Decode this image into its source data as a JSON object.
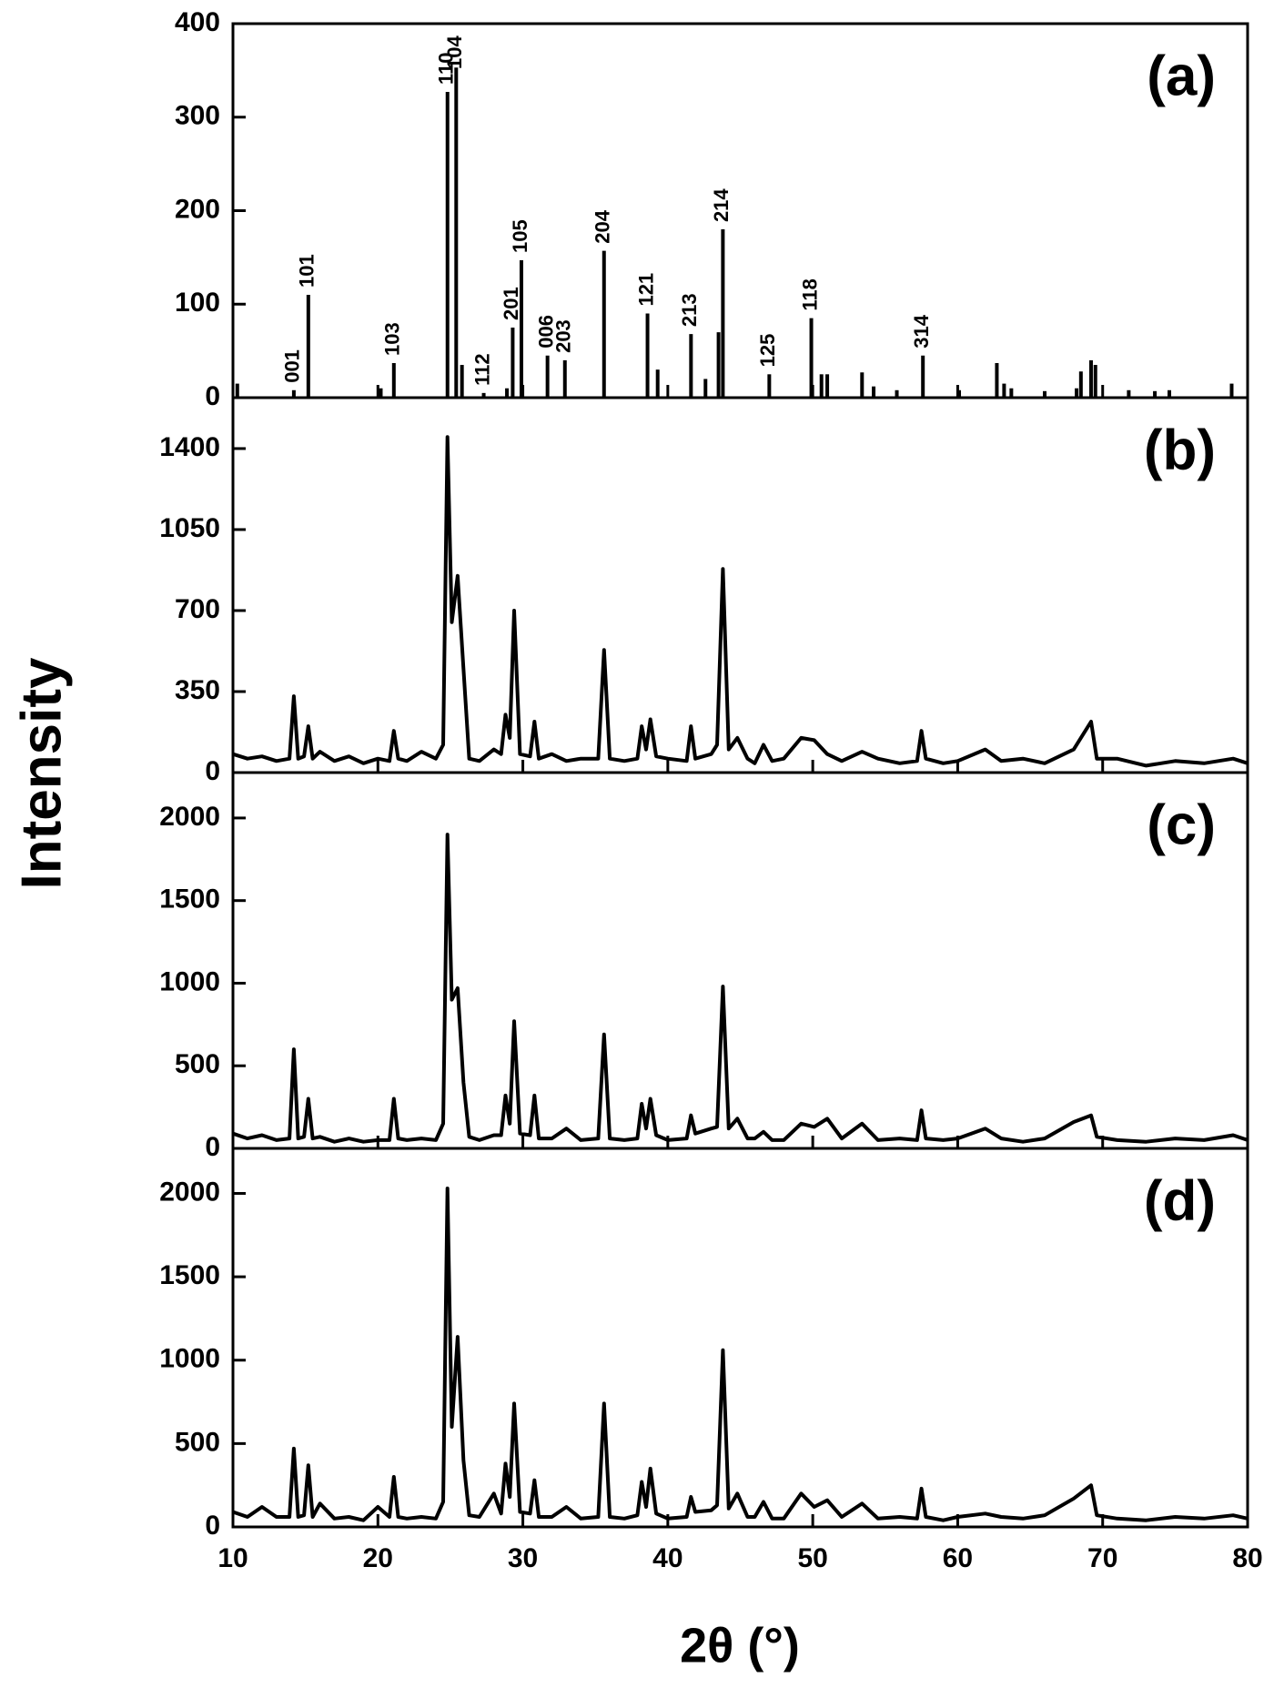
{
  "x_label": "2θ (°)",
  "y_label": "Intensity",
  "chart_data": [
    {
      "type": "stem",
      "label": "(a)",
      "color": "#000000",
      "xlim": [
        10,
        80
      ],
      "xticks": [
        10,
        20,
        30,
        40,
        50,
        60,
        70,
        80
      ],
      "ylim": [
        0,
        400
      ],
      "yticks": [
        0,
        100,
        200,
        300,
        400
      ],
      "x": [
        10.3,
        14.2,
        15.2,
        20.2,
        21.1,
        24.8,
        25.4,
        25.8,
        27.3,
        28.9,
        29.3,
        29.9,
        31.7,
        32.9,
        35.6,
        38.6,
        39.3,
        41.6,
        42.6,
        43.5,
        43.8,
        47.0,
        49.9,
        50.6,
        51.0,
        53.4,
        54.2,
        55.8,
        57.6,
        60.1,
        62.7,
        63.2,
        63.7,
        66.0,
        68.2,
        68.5,
        69.2,
        69.5,
        71.8,
        73.6,
        74.6,
        78.9
      ],
      "values": [
        15,
        8,
        110,
        10,
        37,
        327,
        353,
        35,
        5,
        10,
        75,
        147,
        45,
        40,
        157,
        90,
        30,
        68,
        20,
        70,
        180,
        25,
        85,
        25,
        25,
        27,
        12,
        8,
        45,
        8,
        37,
        15,
        10,
        7,
        10,
        28,
        40,
        35,
        8,
        7,
        8,
        15
      ],
      "annotations": [
        {
          "text": "001",
          "x": 14.2
        },
        {
          "text": "101",
          "x": 15.2
        },
        {
          "text": "103",
          "x": 21.1
        },
        {
          "text": "110",
          "x": 24.8
        },
        {
          "text": "104",
          "x": 25.4
        },
        {
          "text": "112",
          "x": 27.3
        },
        {
          "text": "201",
          "x": 29.3
        },
        {
          "text": "105",
          "x": 29.9
        },
        {
          "text": "006",
          "x": 31.7
        },
        {
          "text": "203",
          "x": 32.9
        },
        {
          "text": "204",
          "x": 35.6
        },
        {
          "text": "121",
          "x": 38.6
        },
        {
          "text": "213",
          "x": 41.6
        },
        {
          "text": "214",
          "x": 43.8
        },
        {
          "text": "125",
          "x": 47.0
        },
        {
          "text": "118",
          "x": 49.9
        },
        {
          "text": "314",
          "x": 57.6
        }
      ]
    },
    {
      "type": "line",
      "label": "(b)",
      "color": "#000000",
      "xlim": [
        10,
        80
      ],
      "xticks": [
        10,
        20,
        30,
        40,
        50,
        60,
        70,
        80
      ],
      "ylim": [
        0,
        1620
      ],
      "yticks": [
        0,
        350,
        700,
        1050,
        1400
      ],
      "x": [
        10,
        11,
        12,
        13,
        13.9,
        14.2,
        14.5,
        14.9,
        15.2,
        15.5,
        16,
        17,
        18,
        19,
        20,
        20.8,
        21.1,
        21.4,
        22,
        23,
        24,
        24.5,
        24.8,
        25.1,
        25.5,
        25.9,
        26.3,
        27,
        28,
        28.5,
        28.8,
        29.1,
        29.4,
        29.8,
        30.5,
        30.8,
        31.1,
        32,
        33,
        34,
        35.2,
        35.6,
        36,
        37,
        37.9,
        38.2,
        38.5,
        38.8,
        39.2,
        40,
        41.3,
        41.6,
        41.9,
        43,
        43.4,
        43.8,
        44.2,
        44.8,
        45.5,
        46,
        46.6,
        47.2,
        48,
        49.2,
        50.1,
        51,
        52,
        53.4,
        54.5,
        56,
        57.2,
        57.5,
        57.8,
        59,
        60,
        61.9,
        63,
        64.5,
        66,
        68,
        69.2,
        69.6,
        71,
        73,
        75,
        77,
        79,
        80
      ],
      "values": [
        80,
        60,
        70,
        50,
        60,
        330,
        60,
        70,
        200,
        60,
        90,
        50,
        70,
        40,
        60,
        50,
        180,
        60,
        50,
        90,
        60,
        120,
        1450,
        650,
        850,
        450,
        60,
        50,
        100,
        80,
        250,
        150,
        700,
        80,
        70,
        220,
        60,
        80,
        50,
        60,
        60,
        530,
        60,
        50,
        60,
        200,
        100,
        230,
        70,
        60,
        50,
        200,
        60,
        80,
        120,
        880,
        100,
        150,
        60,
        40,
        120,
        50,
        60,
        150,
        140,
        80,
        50,
        90,
        60,
        40,
        50,
        180,
        60,
        40,
        50,
        100,
        50,
        60,
        40,
        100,
        220,
        60,
        60,
        30,
        50,
        40,
        60,
        40
      ]
    },
    {
      "type": "line",
      "label": "(c)",
      "color": "#000000",
      "xlim": [
        10,
        80
      ],
      "xticks": [
        10,
        20,
        30,
        40,
        50,
        60,
        70,
        80
      ],
      "ylim": [
        0,
        2275
      ],
      "yticks": [
        0,
        500,
        1000,
        1500,
        2000
      ],
      "x": [
        10,
        11,
        12,
        13,
        13.9,
        14.2,
        14.5,
        14.9,
        15.2,
        15.5,
        16,
        17,
        18,
        19,
        20,
        20.8,
        21.1,
        21.4,
        22,
        23,
        24,
        24.5,
        24.8,
        25.1,
        25.5,
        25.9,
        26.3,
        27,
        28,
        28.5,
        28.8,
        29.1,
        29.4,
        29.8,
        30.5,
        30.8,
        31.1,
        32,
        33,
        34,
        35.2,
        35.6,
        36,
        37,
        37.9,
        38.2,
        38.5,
        38.8,
        39.2,
        40,
        41.3,
        41.6,
        41.9,
        43,
        43.4,
        43.8,
        44.2,
        44.8,
        45.5,
        46,
        46.6,
        47.2,
        48,
        49.2,
        50.1,
        51,
        52,
        53.4,
        54.5,
        56,
        57.2,
        57.5,
        57.8,
        59,
        60,
        61.9,
        63,
        64.5,
        66,
        68,
        69.2,
        69.6,
        71,
        73,
        75,
        77,
        79,
        80
      ],
      "values": [
        90,
        60,
        80,
        50,
        60,
        600,
        60,
        70,
        300,
        60,
        70,
        40,
        60,
        40,
        50,
        50,
        300,
        60,
        50,
        60,
        50,
        150,
        1900,
        900,
        970,
        400,
        70,
        50,
        80,
        80,
        320,
        150,
        770,
        90,
        80,
        320,
        60,
        60,
        120,
        50,
        60,
        690,
        60,
        50,
        60,
        270,
        120,
        300,
        80,
        50,
        60,
        200,
        90,
        120,
        130,
        980,
        120,
        180,
        60,
        60,
        100,
        50,
        50,
        150,
        130,
        180,
        60,
        150,
        50,
        60,
        50,
        230,
        60,
        50,
        60,
        120,
        60,
        40,
        60,
        160,
        200,
        70,
        50,
        40,
        60,
        50,
        80,
        50
      ]
    },
    {
      "type": "line",
      "label": "(d)",
      "color": "#000000",
      "xlim": [
        10,
        80
      ],
      "xticks": [
        10,
        20,
        30,
        40,
        50,
        60,
        70,
        80
      ],
      "ylim": [
        0,
        2270
      ],
      "yticks": [
        0,
        500,
        1000,
        1500,
        2000
      ],
      "x": [
        10,
        11,
        12,
        13,
        13.9,
        14.2,
        14.5,
        14.9,
        15.2,
        15.5,
        16,
        17,
        18,
        19,
        20,
        20.8,
        21.1,
        21.4,
        22,
        23,
        24,
        24.5,
        24.8,
        25.1,
        25.5,
        25.9,
        26.3,
        27,
        28,
        28.5,
        28.8,
        29.1,
        29.4,
        29.8,
        30.5,
        30.8,
        31.1,
        32,
        33,
        34,
        35.2,
        35.6,
        36,
        37,
        37.9,
        38.2,
        38.5,
        38.8,
        39.2,
        40,
        41.3,
        41.6,
        41.9,
        43,
        43.4,
        43.8,
        44.2,
        44.8,
        45.5,
        46,
        46.6,
        47.2,
        48,
        49.2,
        50.1,
        51,
        52,
        53.4,
        54.5,
        56,
        57.2,
        57.5,
        57.8,
        59,
        60,
        61.9,
        63,
        64.5,
        66,
        68,
        69.2,
        69.6,
        71,
        73,
        75,
        77,
        79,
        80
      ],
      "values": [
        90,
        60,
        120,
        60,
        60,
        470,
        60,
        70,
        370,
        60,
        140,
        50,
        60,
        40,
        120,
        60,
        300,
        60,
        50,
        60,
        50,
        150,
        2030,
        600,
        1140,
        400,
        70,
        60,
        200,
        80,
        380,
        180,
        740,
        90,
        80,
        280,
        60,
        60,
        120,
        50,
        60,
        740,
        60,
        50,
        70,
        270,
        120,
        350,
        80,
        50,
        60,
        180,
        90,
        100,
        130,
        1060,
        110,
        200,
        60,
        60,
        150,
        50,
        50,
        200,
        120,
        160,
        60,
        140,
        50,
        60,
        50,
        230,
        60,
        40,
        60,
        80,
        60,
        50,
        70,
        170,
        250,
        70,
        50,
        40,
        60,
        50,
        70,
        50
      ]
    }
  ]
}
